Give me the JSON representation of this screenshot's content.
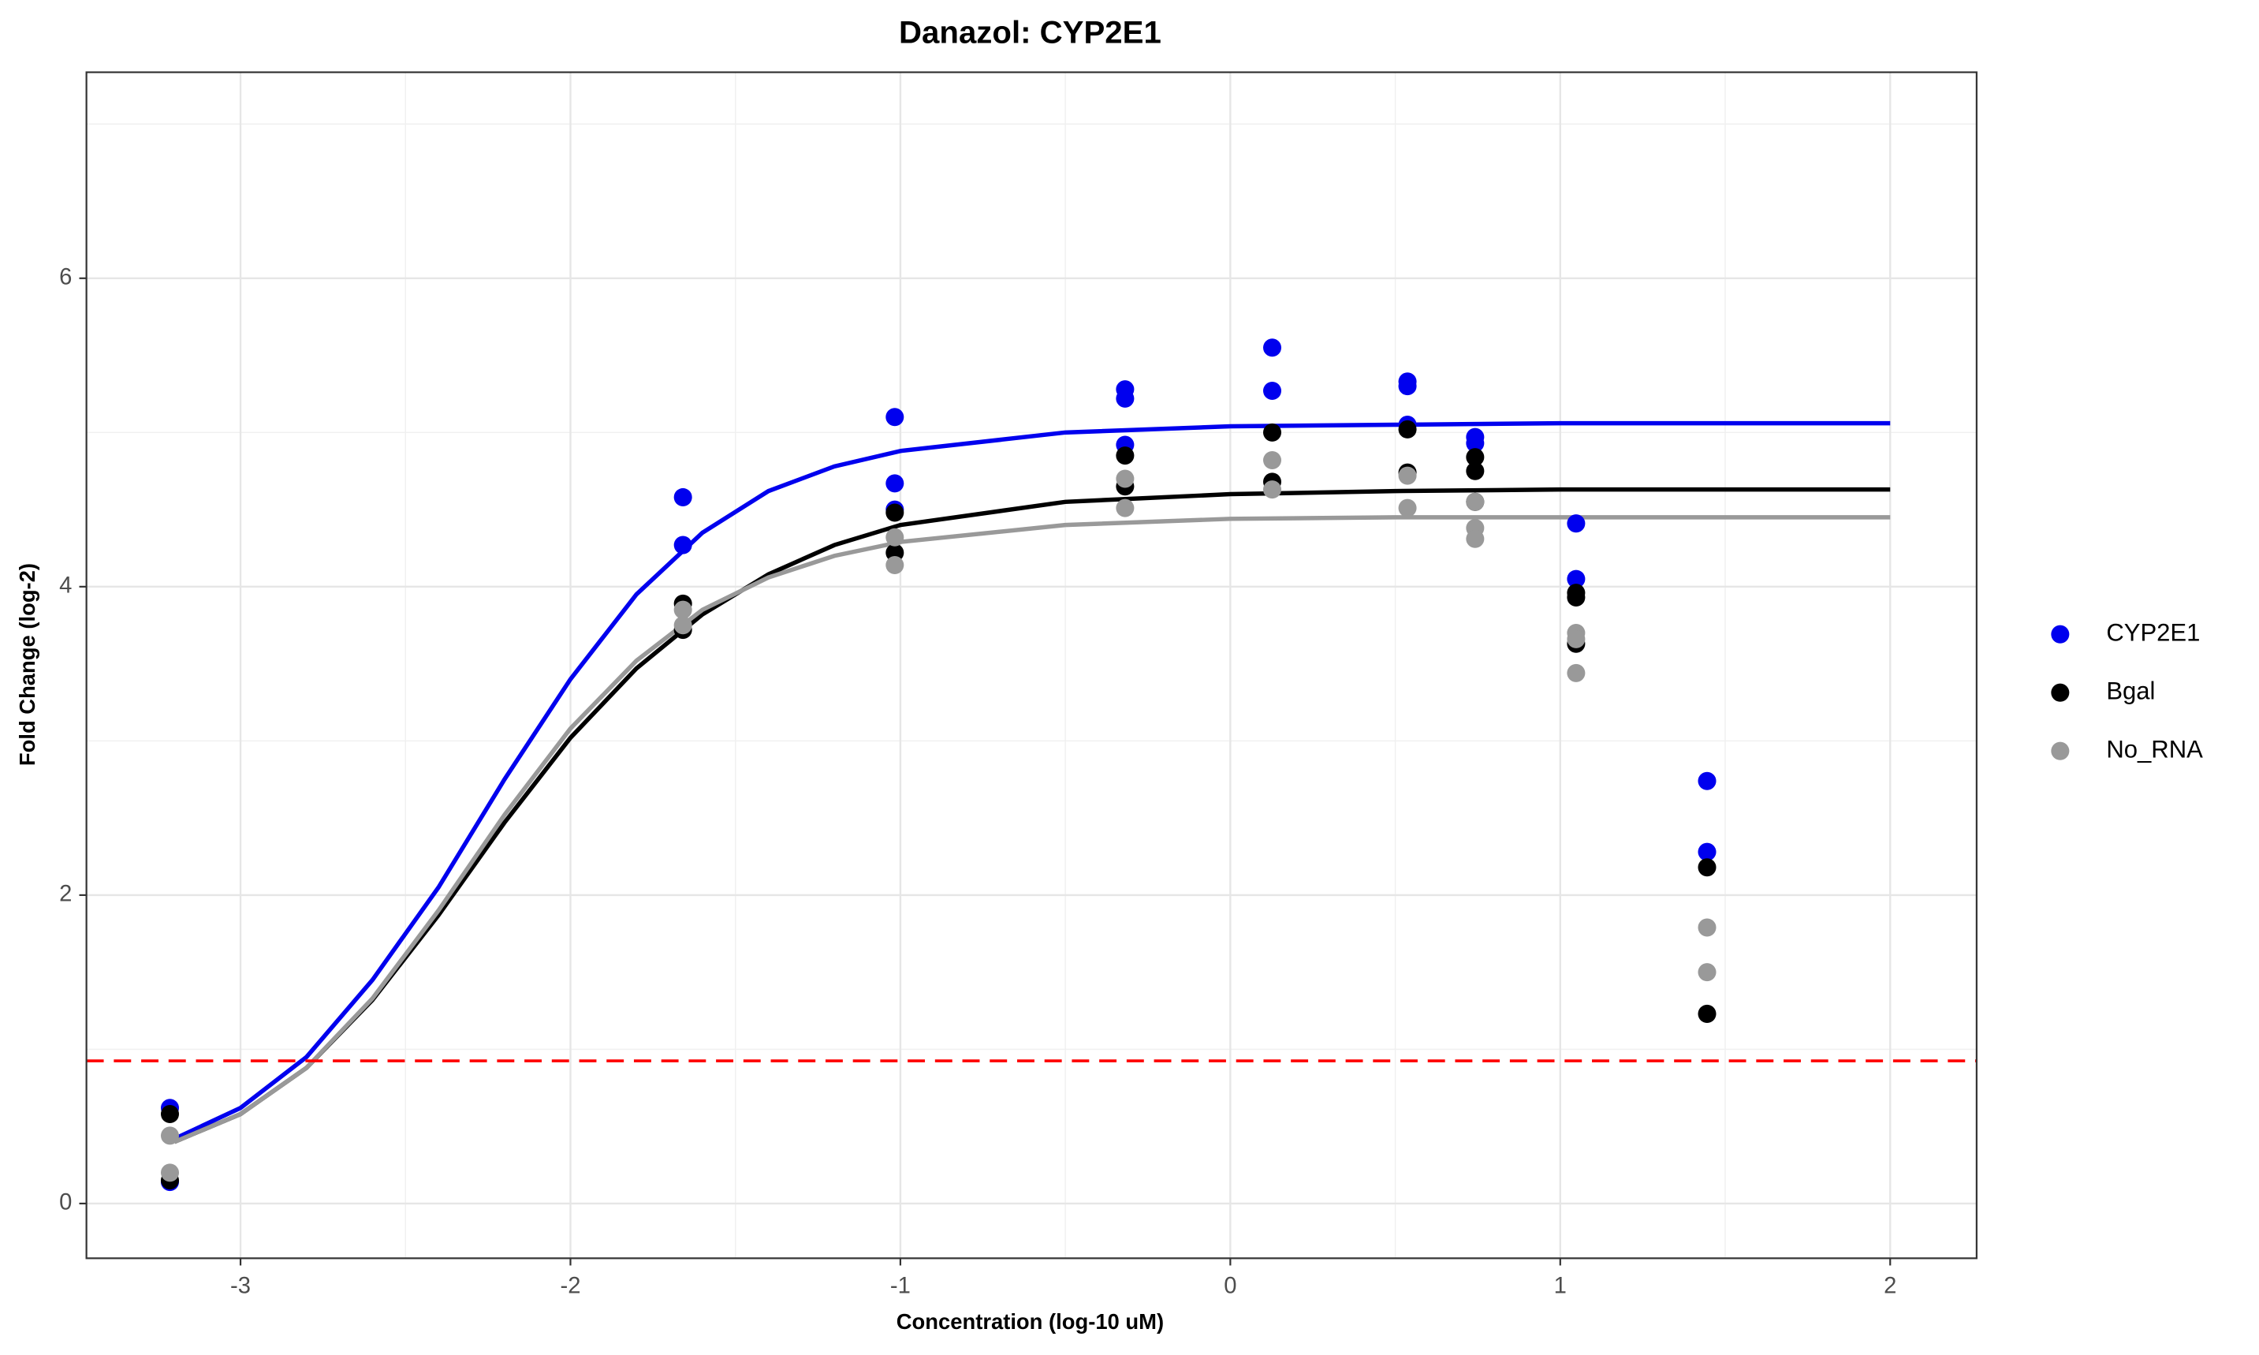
{
  "chart_data": {
    "type": "scatter",
    "title": "Danazol: CYP2E1",
    "x_label": "Concentration (log-10 uM)",
    "y_label": "Fold Change (log-2)",
    "xlim": [
      -3.467,
      2.262
    ],
    "ylim": [
      -0.355,
      7.336
    ],
    "xticks": [
      -3,
      -2,
      -1,
      0,
      1,
      2
    ],
    "yticks": [
      0,
      2,
      4,
      6
    ],
    "x_minor_grid": [
      -2.5,
      -1.5,
      -0.5,
      0.5,
      1.5
    ],
    "y_minor_grid": [
      1,
      3,
      5,
      7
    ],
    "grid": true,
    "legend": "right",
    "threshold": 0.925,
    "threshold_color": "#ff0000",
    "series": [
      {
        "name": "CYP2E1",
        "color": "#0000ee",
        "x": [
          -3.214,
          -3.214,
          -1.659,
          -1.659,
          -1.017,
          -1.017,
          -1.017,
          -0.319,
          -0.319,
          -0.319,
          0.127,
          0.127,
          0.537,
          0.537,
          0.537,
          0.742,
          0.742,
          1.048,
          1.048,
          1.445,
          1.445
        ],
        "values": [
          0.62,
          0.14,
          4.58,
          4.27,
          5.1,
          4.67,
          4.5,
          5.28,
          5.22,
          4.92,
          5.55,
          5.27,
          5.33,
          5.3,
          5.05,
          4.97,
          4.93,
          4.41,
          4.05,
          2.74,
          2.28
        ],
        "fit": {
          "x": [
            -3.2,
            -3.0,
            -2.8,
            -2.6,
            -2.4,
            -2.2,
            -2.0,
            -1.8,
            -1.6,
            -1.4,
            -1.2,
            -1.0,
            -0.5,
            0,
            0.5,
            1,
            1.5,
            2
          ],
          "values": [
            0.42,
            0.62,
            0.95,
            1.45,
            2.05,
            2.75,
            3.4,
            3.95,
            4.35,
            4.62,
            4.78,
            4.88,
            5.0,
            5.04,
            5.05,
            5.06,
            5.06,
            5.06
          ]
        }
      },
      {
        "name": "Bgal",
        "color": "#000000",
        "x": [
          -3.214,
          -3.214,
          -1.659,
          -1.659,
          -1.017,
          -1.017,
          -0.319,
          -0.319,
          0.127,
          0.127,
          0.537,
          0.537,
          0.742,
          0.742,
          0.742,
          1.048,
          1.048,
          1.048,
          1.445,
          1.445
        ],
        "values": [
          0.58,
          0.15,
          3.89,
          3.72,
          4.48,
          4.22,
          4.85,
          4.65,
          5.0,
          4.68,
          5.02,
          4.74,
          4.84,
          4.75,
          4.55,
          3.96,
          3.93,
          3.63,
          2.18,
          1.23
        ],
        "fit": {
          "x": [
            -3.2,
            -3.0,
            -2.8,
            -2.6,
            -2.4,
            -2.2,
            -2.0,
            -1.8,
            -1.6,
            -1.4,
            -1.2,
            -1.0,
            -0.5,
            0,
            0.5,
            1,
            1.5,
            2
          ],
          "values": [
            0.4,
            0.58,
            0.88,
            1.32,
            1.87,
            2.47,
            3.02,
            3.47,
            3.82,
            4.08,
            4.27,
            4.4,
            4.55,
            4.6,
            4.62,
            4.63,
            4.63,
            4.63
          ]
        }
      },
      {
        "name": "No_RNA",
        "color": "#999999",
        "x": [
          -3.214,
          -3.214,
          -1.659,
          -1.659,
          -1.017,
          -1.017,
          -0.319,
          -0.319,
          0.127,
          0.127,
          0.537,
          0.537,
          0.742,
          0.742,
          0.742,
          1.048,
          1.048,
          1.048,
          1.445,
          1.445
        ],
        "values": [
          0.44,
          0.2,
          3.85,
          3.75,
          4.32,
          4.14,
          4.7,
          4.51,
          4.82,
          4.63,
          4.72,
          4.51,
          4.55,
          4.38,
          4.31,
          3.7,
          3.66,
          3.44,
          1.79,
          1.5
        ],
        "fit": {
          "x": [
            -3.2,
            -3.0,
            -2.8,
            -2.6,
            -2.4,
            -2.2,
            -2.0,
            -1.8,
            -1.6,
            -1.4,
            -1.2,
            -1.0,
            -0.5,
            0,
            0.5,
            1,
            1.5,
            2
          ],
          "values": [
            0.4,
            0.58,
            0.88,
            1.33,
            1.9,
            2.52,
            3.08,
            3.52,
            3.85,
            4.06,
            4.2,
            4.29,
            4.4,
            4.44,
            4.45,
            4.45,
            4.45,
            4.45
          ]
        }
      }
    ]
  }
}
